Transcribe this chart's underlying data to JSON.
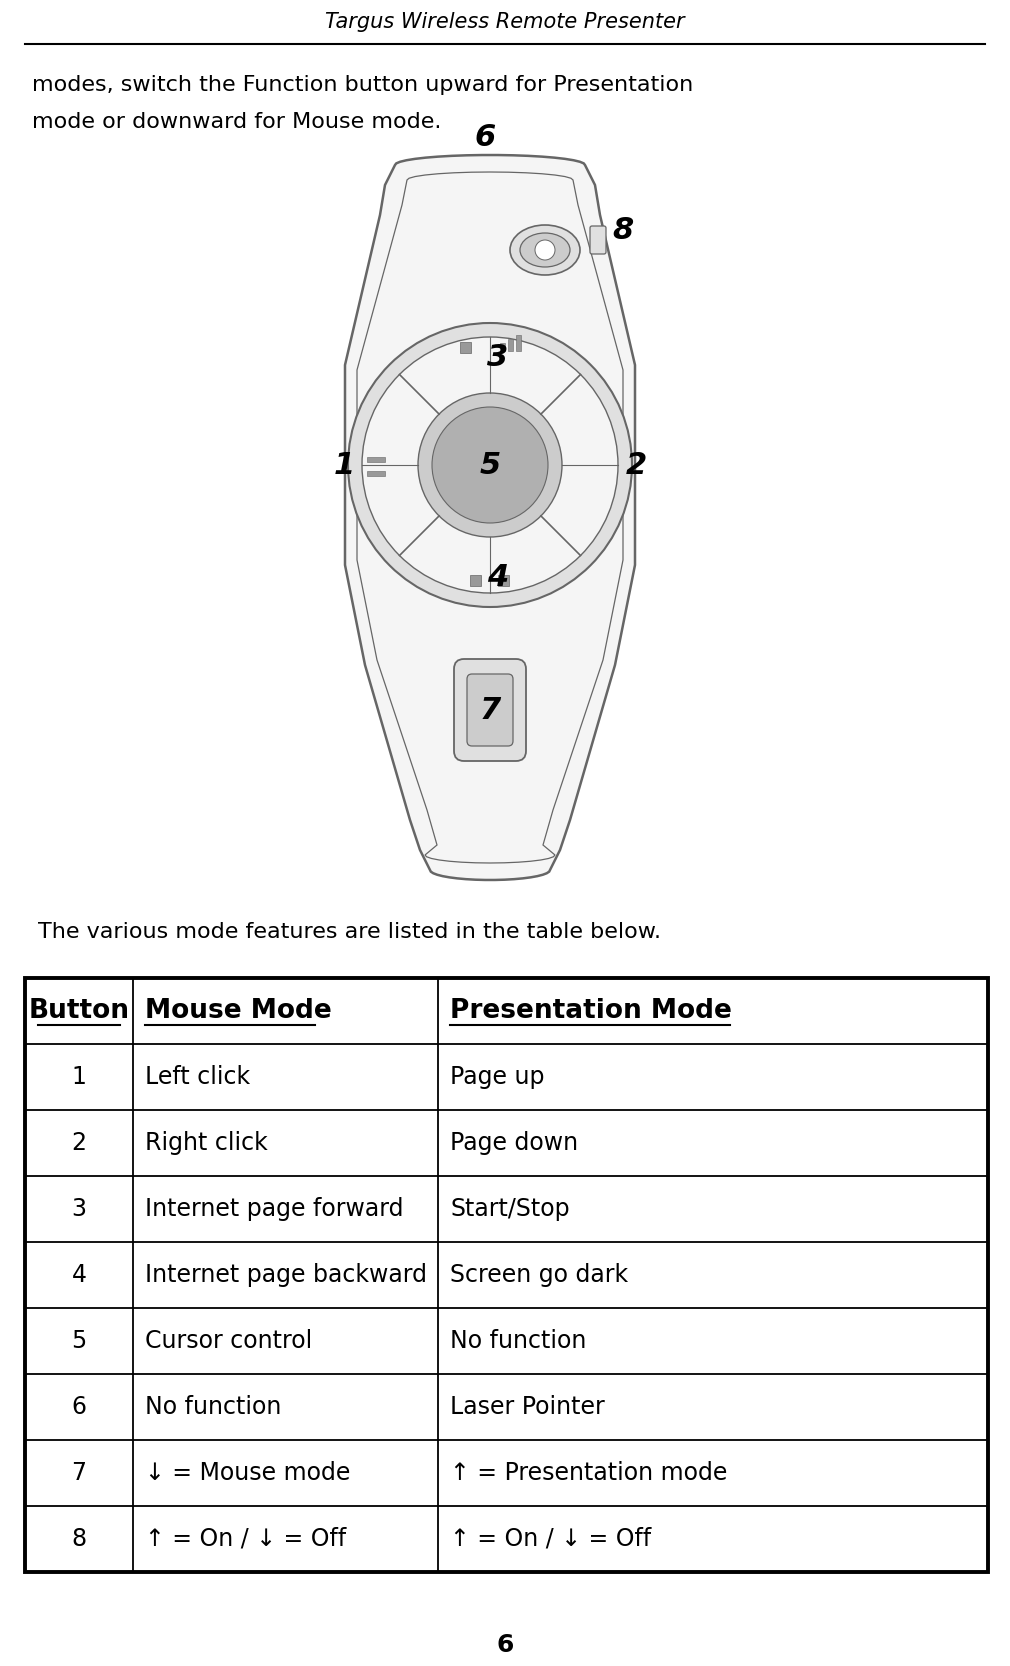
{
  "title": "Targus Wireless Remote Presenter",
  "intro_text_line1": "modes, switch the Function button upward for Presentation",
  "intro_text_line2": "mode or downward for Mouse mode.",
  "below_text": "The various mode features are listed in the table below.",
  "page_number": "6",
  "table_headers": [
    "Button",
    "Mouse Mode",
    "Presentation Mode"
  ],
  "table_rows": [
    [
      "1",
      "Left click",
      "Page up"
    ],
    [
      "2",
      "Right click",
      "Page down"
    ],
    [
      "3",
      "Internet page forward",
      "Start/Stop"
    ],
    [
      "4",
      "Internet page backward",
      "Screen go dark"
    ],
    [
      "5",
      "Cursor control",
      "No function"
    ],
    [
      "6",
      "No function",
      "Laser Pointer"
    ],
    [
      "7",
      "↓ = Mouse mode",
      "↑ = Presentation mode"
    ],
    [
      "8",
      "↑ = On / ↓ = Off",
      "↑ = On / ↓ = Off"
    ]
  ],
  "bg_color": "#ffffff",
  "text_color": "#000000",
  "line_color": "#000000",
  "dev_outline": "#666666",
  "dev_fill": "#f5f5f5",
  "dev_mid": "#e0e0e0",
  "dev_dark": "#cccccc"
}
